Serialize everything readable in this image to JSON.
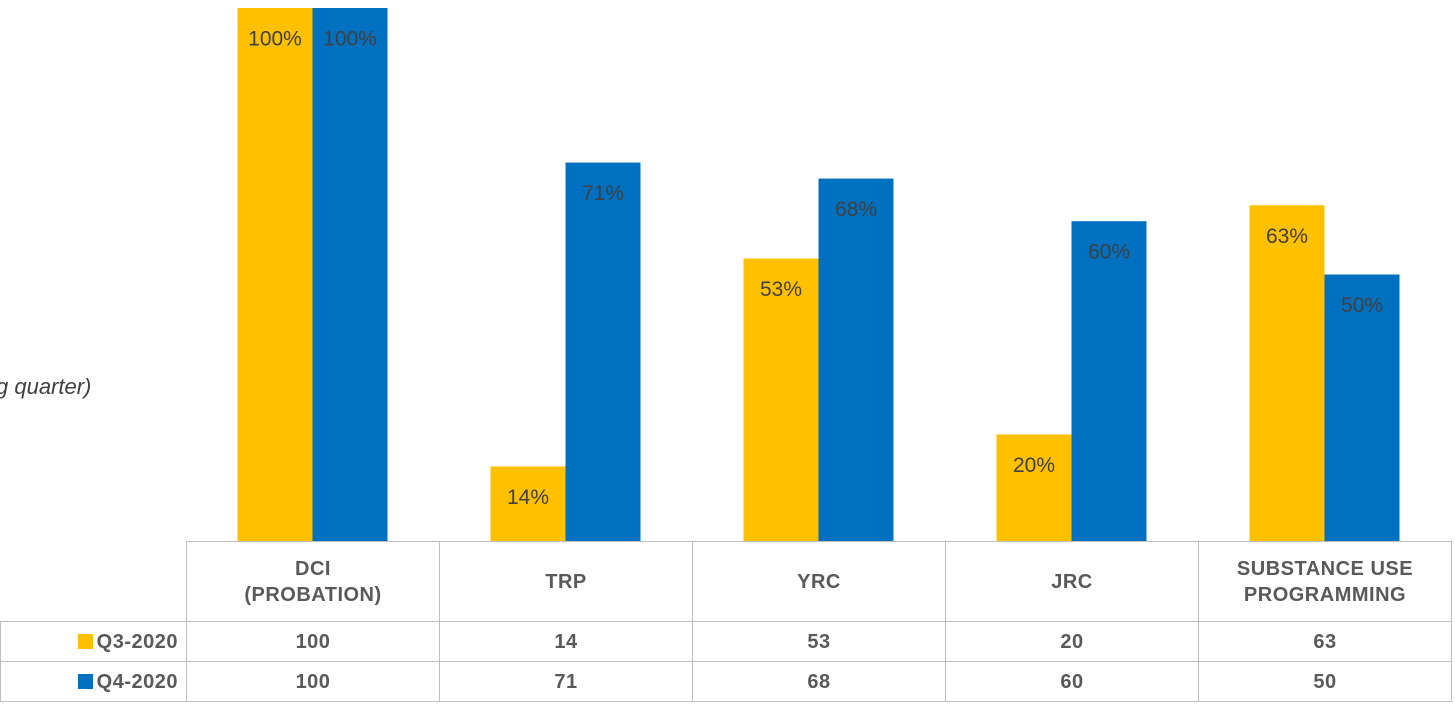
{
  "chart_data": {
    "type": "bar",
    "annotation": "g quarter)",
    "categories": [
      "DCI\n(PROBATION)",
      "TRP",
      "YRC",
      "JRC",
      "SUBSTANCE USE\nPROGRAMMING"
    ],
    "series": [
      {
        "name": "Q3-2020",
        "color": "#FFC000",
        "values": [
          100,
          14,
          53,
          20,
          63
        ],
        "value_labels": [
          "100%",
          "14%",
          "53%",
          "20%",
          "63%"
        ]
      },
      {
        "name": "Q4-2020",
        "color": "#0070C0",
        "values": [
          100,
          71,
          68,
          60,
          50
        ],
        "value_labels": [
          "100%",
          "71%",
          "68%",
          "60%",
          "50%"
        ]
      }
    ],
    "ylim": [
      0,
      100
    ]
  }
}
